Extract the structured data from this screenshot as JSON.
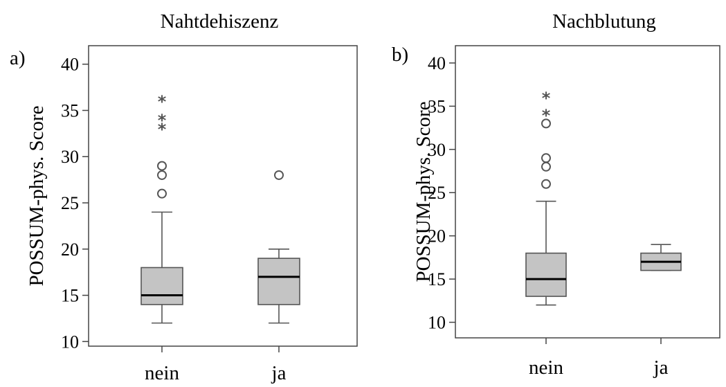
{
  "chart_data": [
    {
      "type": "boxplot",
      "panel_label": "a)",
      "title": "Nahtdehiszenz",
      "ylabel": "POSSUM-phys. Score",
      "xlabel": "",
      "ylim": [
        9.5,
        42
      ],
      "yticks": [
        10,
        15,
        20,
        25,
        30,
        35,
        40
      ],
      "categories": [
        "nein",
        "ja"
      ],
      "groups": [
        {
          "category": "nein",
          "whisker_low": 12,
          "q1": 14,
          "median": 15,
          "q3": 18,
          "whisker_high": 24,
          "outliers_circle": [
            26,
            28,
            29
          ],
          "outliers_star": [
            33,
            34,
            36
          ]
        },
        {
          "category": "ja",
          "whisker_low": 12,
          "q1": 14,
          "median": 17,
          "q3": 19,
          "whisker_high": 20,
          "outliers_circle": [
            28
          ],
          "outliers_star": []
        }
      ],
      "grid": false
    },
    {
      "type": "boxplot",
      "panel_label": "b)",
      "title": "Nachblutung",
      "ylabel": "POSSUM-phys. Score",
      "xlabel": "",
      "ylim": [
        8.2,
        42
      ],
      "yticks": [
        10,
        15,
        20,
        25,
        30,
        35,
        40
      ],
      "categories": [
        "nein",
        "ja"
      ],
      "groups": [
        {
          "category": "nein",
          "whisker_low": 12,
          "q1": 13,
          "median": 15,
          "q3": 18,
          "whisker_high": 24,
          "outliers_circle": [
            26,
            28,
            29,
            33
          ],
          "outliers_star": [
            34,
            36
          ]
        },
        {
          "category": "ja",
          "whisker_low": 16,
          "q1": 16,
          "median": 17,
          "q3": 18,
          "whisker_high": 19,
          "outliers_circle": [],
          "outliers_star": []
        }
      ],
      "grid": false
    }
  ],
  "colors": {
    "box_fill": "#c4c4c4",
    "stroke": "#555555",
    "median": "#000000",
    "outlier": "#555555"
  }
}
